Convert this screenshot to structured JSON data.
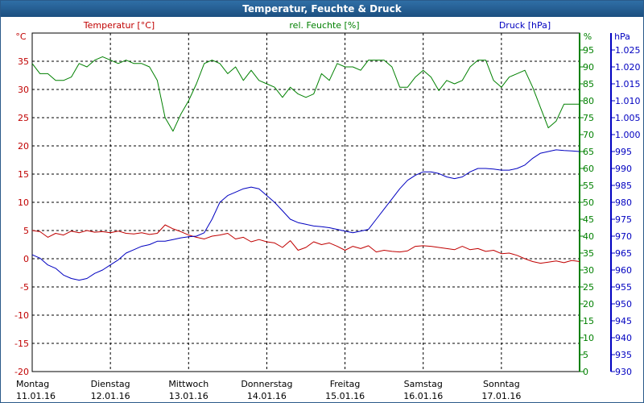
{
  "window": {
    "title": "Temperatur, Feuchte & Druck"
  },
  "chart_data": {
    "type": "line",
    "title": "Temperatur, Feuchte & Druck",
    "grid": true,
    "colors": {
      "temperature": "#c00000",
      "humidity": "#008000",
      "pressure": "#0000c0"
    },
    "axes": {
      "temperature": {
        "label": "Temperatur [°C]",
        "unit": "°C",
        "range": [
          -20,
          40
        ],
        "ticks": [
          "-20",
          "-15",
          "-10",
          "-5",
          "0",
          "5",
          "10",
          "15",
          "20",
          "25",
          "30",
          "35"
        ]
      },
      "humidity": {
        "label": "rel. Feuchte [%]",
        "unit": "%",
        "range": [
          0,
          100
        ],
        "ticks": [
          "0",
          "5",
          "10",
          "15",
          "20",
          "25",
          "30",
          "35",
          "40",
          "45",
          "50",
          "55",
          "60",
          "65",
          "70",
          "75",
          "80",
          "85",
          "90",
          "95"
        ]
      },
      "pressure": {
        "label": "Druck [hPa]",
        "unit": "hPa",
        "range": [
          930,
          1030
        ],
        "ticks": [
          "930",
          "935",
          "940",
          "945",
          "950",
          "955",
          "960",
          "965",
          "970",
          "975",
          "980",
          "985",
          "990",
          "995",
          "1.000",
          "1.005",
          "1.010",
          "1.015",
          "1.020",
          "1.025"
        ]
      }
    },
    "days": [
      {
        "name": "Montag",
        "date": "11.01.16"
      },
      {
        "name": "Dienstag",
        "date": "12.01.16"
      },
      {
        "name": "Mittwoch",
        "date": "13.01.16"
      },
      {
        "name": "Donnerstag",
        "date": "14.01.16"
      },
      {
        "name": "Freitag",
        "date": "15.01.16"
      },
      {
        "name": "Samstag",
        "date": "16.01.16"
      },
      {
        "name": "Sonntag",
        "date": "17.01.16"
      }
    ],
    "x_range": [
      0,
      7
    ],
    "series": [
      {
        "key": "temperature",
        "name": "Temperatur [°C]",
        "x": [
          0,
          0.1,
          0.2,
          0.3,
          0.4,
          0.5,
          0.6,
          0.7,
          0.8,
          0.9,
          1.0,
          1.1,
          1.2,
          1.3,
          1.4,
          1.5,
          1.6,
          1.7,
          1.8,
          1.9,
          2.0,
          2.1,
          2.2,
          2.3,
          2.4,
          2.5,
          2.6,
          2.7,
          2.8,
          2.9,
          3.0,
          3.1,
          3.2,
          3.3,
          3.4,
          3.5,
          3.6,
          3.7,
          3.8,
          3.9,
          4.0,
          4.1,
          4.2,
          4.3,
          4.4,
          4.5,
          4.6,
          4.7,
          4.8,
          4.9,
          5.0,
          5.1,
          5.2,
          5.3,
          5.4,
          5.5,
          5.6,
          5.7,
          5.8,
          5.9,
          6.0,
          6.1,
          6.2,
          6.3,
          6.4,
          6.5,
          6.6,
          6.7,
          6.8,
          6.9,
          7.0
        ],
        "values": [
          5,
          4.8,
          3.8,
          4.5,
          4.2,
          4.9,
          4.6,
          5.0,
          4.7,
          4.8,
          4.6,
          4.9,
          4.5,
          4.4,
          4.6,
          4.3,
          4.5,
          6.0,
          5.3,
          4.8,
          4.2,
          3.8,
          3.5,
          4.0,
          4.2,
          4.5,
          3.5,
          3.8,
          3.0,
          3.4,
          3.0,
          2.8,
          2.0,
          3.2,
          1.5,
          2.0,
          3.0,
          2.5,
          2.8,
          2.2,
          1.5,
          2.2,
          1.8,
          2.3,
          1.2,
          1.5,
          1.3,
          1.2,
          1.4,
          2.2,
          2.3,
          2.2,
          2.0,
          1.8,
          1.6,
          2.2,
          1.6,
          1.8,
          1.3,
          1.5,
          0.9,
          1.0,
          0.6,
          0.0,
          -0.5,
          -0.8,
          -0.6,
          -0.4,
          -0.7,
          -0.3,
          -0.5
        ]
      },
      {
        "key": "humidity",
        "name": "rel. Feuchte [%]",
        "x": [
          0,
          0.1,
          0.2,
          0.3,
          0.4,
          0.5,
          0.6,
          0.7,
          0.8,
          0.9,
          1.0,
          1.1,
          1.2,
          1.3,
          1.4,
          1.5,
          1.6,
          1.7,
          1.8,
          1.9,
          2.0,
          2.1,
          2.2,
          2.3,
          2.4,
          2.5,
          2.6,
          2.7,
          2.8,
          2.9,
          3.0,
          3.1,
          3.2,
          3.3,
          3.4,
          3.5,
          3.6,
          3.7,
          3.8,
          3.9,
          4.0,
          4.1,
          4.2,
          4.3,
          4.4,
          4.5,
          4.6,
          4.7,
          4.8,
          4.9,
          5.0,
          5.1,
          5.2,
          5.3,
          5.4,
          5.5,
          5.6,
          5.7,
          5.8,
          5.9,
          6.0,
          6.1,
          6.2,
          6.3,
          6.4,
          6.5,
          6.6,
          6.7,
          6.8,
          6.9,
          7.0
        ],
        "values": [
          91,
          88,
          88,
          86,
          86,
          87,
          91,
          90,
          92,
          93,
          92,
          91,
          92,
          91,
          91,
          90,
          86,
          75,
          71,
          76,
          80,
          85,
          91,
          92,
          91,
          88,
          90,
          86,
          89,
          86,
          85,
          84,
          81,
          84,
          82,
          81,
          82,
          88,
          86,
          91,
          90,
          90,
          89,
          92,
          92,
          92,
          90,
          84,
          84,
          87,
          89,
          87,
          83,
          86,
          85,
          86,
          90,
          92,
          92,
          86,
          84,
          87,
          88,
          89,
          84,
          78,
          72,
          74,
          79,
          79,
          79
        ]
      },
      {
        "key": "pressure",
        "name": "Druck [hPa]",
        "x": [
          0,
          0.1,
          0.2,
          0.3,
          0.4,
          0.5,
          0.6,
          0.7,
          0.8,
          0.9,
          1.0,
          1.1,
          1.2,
          1.3,
          1.4,
          1.5,
          1.6,
          1.7,
          1.8,
          1.9,
          2.0,
          2.1,
          2.2,
          2.3,
          2.4,
          2.5,
          2.6,
          2.7,
          2.8,
          2.9,
          3.0,
          3.1,
          3.2,
          3.3,
          3.4,
          3.5,
          3.6,
          3.7,
          3.8,
          3.9,
          4.0,
          4.1,
          4.2,
          4.3,
          4.4,
          4.5,
          4.6,
          4.7,
          4.8,
          4.9,
          5.0,
          5.1,
          5.2,
          5.3,
          5.4,
          5.5,
          5.6,
          5.7,
          5.8,
          5.9,
          6.0,
          6.1,
          6.2,
          6.3,
          6.4,
          6.5,
          6.6,
          6.7,
          6.8,
          6.9,
          7.0
        ],
        "values": [
          964.5,
          963.5,
          961.5,
          960.5,
          958.5,
          957.5,
          957.0,
          957.5,
          959.0,
          960.0,
          961.5,
          963.0,
          965.0,
          966.0,
          967.0,
          967.5,
          968.5,
          968.5,
          969.0,
          969.5,
          969.8,
          970.0,
          971.0,
          975.0,
          980.0,
          982.0,
          983.0,
          984.0,
          984.5,
          984.0,
          982.0,
          980.0,
          977.5,
          975.0,
          974.0,
          973.5,
          973.0,
          972.8,
          972.5,
          972.0,
          971.5,
          971.0,
          971.5,
          972.0,
          975.0,
          978.0,
          981.0,
          984.0,
          986.5,
          988.0,
          989.0,
          989.0,
          988.5,
          987.5,
          987.0,
          987.5,
          989.0,
          990.0,
          990.0,
          989.8,
          989.5,
          989.5,
          990.0,
          991.0,
          993.0,
          994.5,
          995.0,
          995.5,
          995.3,
          995.2,
          995.0
        ]
      }
    ]
  }
}
